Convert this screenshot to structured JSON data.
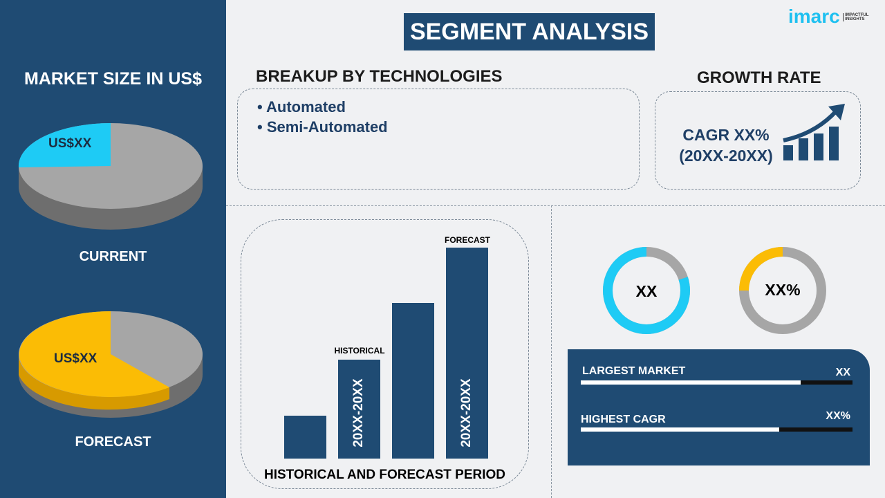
{
  "title": "SEGMENT ANALYSIS",
  "logo": {
    "brand": "imarc",
    "tagline": "IMPACTFUL INSIGHTS"
  },
  "left": {
    "heading": "MARKET SIZE IN US$",
    "current": {
      "label": "CURRENT",
      "value": "US$XX",
      "share": 0.25
    },
    "forecast": {
      "label": "FORECAST",
      "value": "US$XX",
      "share": 0.6
    }
  },
  "breakup": {
    "heading": "BREAKUP BY TECHNOLOGIES",
    "items": [
      "Automated",
      "Semi-Automated"
    ]
  },
  "growth": {
    "heading": "GROWTH RATE",
    "cagr": "CAGR XX%",
    "period": "(20XX-20XX)"
  },
  "period_chart": {
    "historical": "HISTORICAL",
    "forecast": "FORECAST",
    "hist_range": "20XX-20XX",
    "fore_range": "20XX-20XX",
    "footer": "HISTORICAL AND FORECAST PERIOD"
  },
  "donuts": [
    {
      "label": "XX",
      "share": 0.8,
      "color": "#1ecbf5"
    },
    {
      "label": "XX%",
      "share": 0.25,
      "color": "#fbbc05"
    }
  ],
  "stats": [
    {
      "label": "LARGEST MARKET",
      "value": "XX",
      "fill": 0.81
    },
    {
      "label": "HIGHEST CAGR",
      "value": "XX%",
      "fill": 0.73
    }
  ],
  "colors": {
    "navy": "#1f4b73",
    "cyan": "#1ecbf5",
    "yellow": "#fbbc05",
    "gray": "#a6a6a6"
  }
}
